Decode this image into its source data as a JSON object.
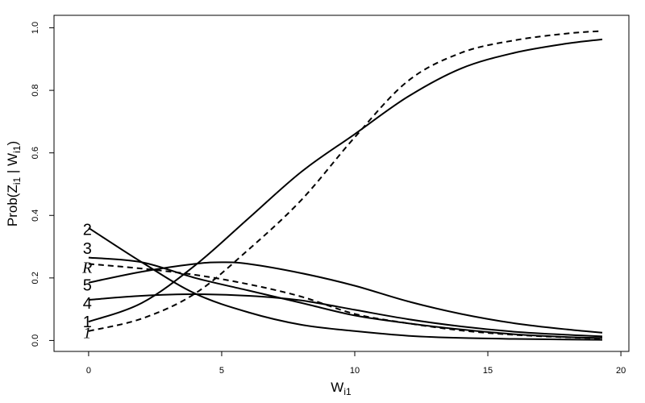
{
  "chart_data": {
    "type": "line",
    "xlabel": {
      "main": "W",
      "sub": "i1"
    },
    "ylabel": {
      "pre": "Prob(Z",
      "sub1": "i1",
      "mid": " | W",
      "sub2": "i1",
      "post": ")"
    },
    "xlim": [
      -1.3,
      20.3
    ],
    "ylim": [
      -0.035,
      1.04
    ],
    "xticks": [
      0,
      5,
      10,
      15,
      20
    ],
    "yticks": [
      0.0,
      0.2,
      0.4,
      0.6,
      0.8,
      1.0
    ],
    "xtick_labels": [
      "0",
      "5",
      "10",
      "15",
      "20"
    ],
    "ytick_labels": [
      "0.0",
      "0.2",
      "0.4",
      "0.6",
      "0.8",
      "1.0"
    ],
    "series": [
      {
        "label": "1",
        "style": "solid",
        "x": [
          0,
          2,
          4,
          6,
          8,
          10,
          12,
          14,
          16,
          18,
          19.3
        ],
        "y": [
          0.06,
          0.12,
          0.24,
          0.39,
          0.54,
          0.66,
          0.78,
          0.87,
          0.92,
          0.95,
          0.963
        ]
      },
      {
        "label": "1",
        "style": "dashed",
        "x": [
          0,
          2,
          4,
          6,
          8,
          10,
          12,
          14,
          16,
          18,
          19.3
        ],
        "y": [
          0.03,
          0.07,
          0.15,
          0.29,
          0.45,
          0.65,
          0.83,
          0.92,
          0.96,
          0.982,
          0.99
        ]
      },
      {
        "label": "2",
        "style": "solid",
        "x": [
          0,
          2,
          4,
          6,
          8,
          10,
          12,
          14,
          16,
          18,
          19.3
        ],
        "y": [
          0.36,
          0.25,
          0.15,
          0.09,
          0.05,
          0.03,
          0.015,
          0.008,
          0.005,
          0.003,
          0.002
        ]
      },
      {
        "label": "3",
        "style": "solid",
        "x": [
          0,
          2,
          4,
          6,
          8,
          10,
          12,
          14,
          16,
          18,
          19.3
        ],
        "y": [
          0.265,
          0.25,
          0.2,
          0.16,
          0.12,
          0.08,
          0.055,
          0.035,
          0.02,
          0.011,
          0.008
        ]
      },
      {
        "label": "R",
        "style": "dashed",
        "x": [
          0,
          2,
          4,
          6,
          8,
          10,
          12,
          14,
          16,
          18,
          19.3
        ],
        "y": [
          0.245,
          0.23,
          0.21,
          0.18,
          0.14,
          0.085,
          0.055,
          0.032,
          0.018,
          0.01,
          0.007
        ]
      },
      {
        "label": "5",
        "style": "solid",
        "x": [
          0,
          2,
          4,
          5,
          6,
          8,
          10,
          12,
          14,
          16,
          18,
          19.3
        ],
        "y": [
          0.185,
          0.22,
          0.245,
          0.25,
          0.245,
          0.215,
          0.175,
          0.125,
          0.085,
          0.055,
          0.035,
          0.025
        ]
      },
      {
        "label": "4",
        "style": "solid",
        "x": [
          0,
          2,
          4,
          6,
          8,
          10,
          12,
          14,
          16,
          18,
          19.3
        ],
        "y": [
          0.13,
          0.143,
          0.148,
          0.143,
          0.128,
          0.098,
          0.068,
          0.045,
          0.028,
          0.018,
          0.013
        ]
      }
    ],
    "curve_labels": [
      {
        "text": "2",
        "x": -0.05,
        "y": 0.355,
        "italic": false
      },
      {
        "text": "3",
        "x": -0.05,
        "y": 0.295,
        "italic": false
      },
      {
        "text": "R",
        "x": -0.05,
        "y": 0.235,
        "italic": true
      },
      {
        "text": "5",
        "x": -0.05,
        "y": 0.178,
        "italic": false
      },
      {
        "text": "4",
        "x": -0.05,
        "y": 0.12,
        "italic": false
      },
      {
        "text": "1",
        "x": -0.05,
        "y": 0.06,
        "italic": false
      },
      {
        "text": "1",
        "x": -0.05,
        "y": 0.025,
        "italic": true
      }
    ],
    "grid": false
  }
}
